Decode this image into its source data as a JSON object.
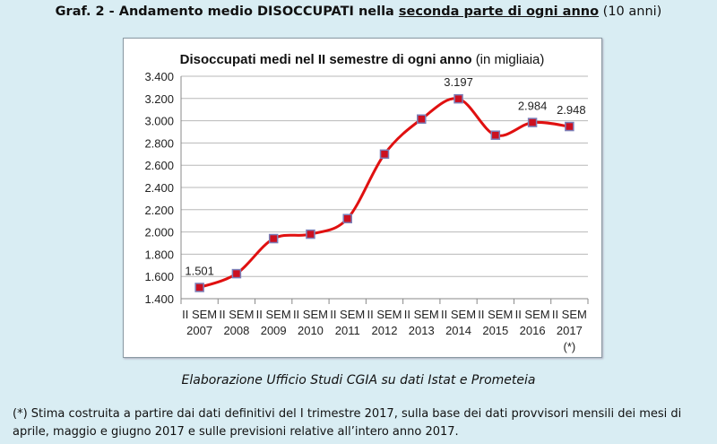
{
  "header": {
    "title_part1": "Graf. 2 - Andamento medio DISOCCUPATI nella ",
    "title_underlined": "seconda parte di ogni anno",
    "title_part2": " (10 anni)"
  },
  "chart_data": {
    "type": "line",
    "title": "Disoccupati medi nel II semestre di ogni anno",
    "title_suffix": "(in migliaia)",
    "categories": [
      [
        "II SEM",
        "2007"
      ],
      [
        "II SEM",
        "2008"
      ],
      [
        "II SEM",
        "2009"
      ],
      [
        "II SEM",
        "2010"
      ],
      [
        "II SEM",
        "2011"
      ],
      [
        "II SEM",
        "2012"
      ],
      [
        "II SEM",
        "2013"
      ],
      [
        "II SEM",
        "2014"
      ],
      [
        "II SEM",
        "2015"
      ],
      [
        "II SEM",
        "2016"
      ],
      [
        "II SEM",
        "2017",
        "(*)"
      ]
    ],
    "values": [
      1501,
      1625,
      1940,
      1980,
      2120,
      2700,
      3015,
      3197,
      2870,
      2984,
      2948
    ],
    "data_labels": {
      "0": "1.501",
      "7": "3.197",
      "9": "2.984",
      "10": "2.948"
    },
    "ylim": [
      1400,
      3400
    ],
    "yticks": [
      "1.400",
      "1.600",
      "1.800",
      "2.000",
      "2.200",
      "2.400",
      "2.600",
      "2.800",
      "3.000",
      "3.200",
      "3.400"
    ],
    "grid": true,
    "line_color": "#e01010",
    "marker_color": "#cc1020",
    "marker_border": "#7b7fb8"
  },
  "caption": "Elaborazione Ufficio Studi CGIA su dati Istat e Prometeia",
  "footnote": "(*) Stima costruita a partire dai dati definitivi del I trimestre 2017, sulla base dei dati provvisori mensili dei mesi di aprile, maggio e giugno 2017 e sulle previsioni relative all’intero anno 2017."
}
